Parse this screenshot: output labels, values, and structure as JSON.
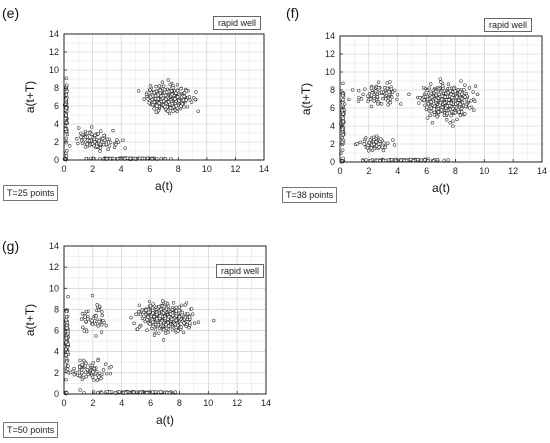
{
  "chart_data": [
    {
      "type": "scatter",
      "panel": "(e)",
      "title": "",
      "xlabel": "a(t)",
      "ylabel": "a(t+T)",
      "xlim": [
        0,
        14
      ],
      "ylim": [
        0,
        14
      ],
      "xticks": [
        0,
        2,
        4,
        6,
        8,
        10,
        12,
        14
      ],
      "yticks": [
        0,
        2,
        4,
        6,
        8,
        10,
        12,
        14
      ],
      "grid": true,
      "legend": "rapid well",
      "legend_position": "top-right",
      "annotation": "T=25 points",
      "clusters": [
        {
          "center": [
            0.1,
            0.1
          ],
          "spread": [
            0.05,
            0.05
          ],
          "count": 40
        },
        {
          "center": [
            0.15,
            5.5
          ],
          "spread": [
            0.06,
            3.0
          ],
          "count": 90
        },
        {
          "center": [
            4.5,
            0.15
          ],
          "spread": [
            2.6,
            0.05
          ],
          "count": 110
        },
        {
          "center": [
            2.3,
            2.2
          ],
          "spread": [
            1.2,
            0.9
          ],
          "count": 110
        },
        {
          "center": [
            7.3,
            6.8
          ],
          "spread": [
            1.3,
            1.2
          ],
          "count": 420
        }
      ]
    },
    {
      "type": "scatter",
      "panel": "(f)",
      "title": "",
      "xlabel": "a(t)",
      "ylabel": "a(t+T)",
      "xlim": [
        0,
        14
      ],
      "ylim": [
        0,
        14
      ],
      "xticks": [
        0,
        2,
        4,
        6,
        8,
        10,
        12,
        14
      ],
      "yticks": [
        0,
        2,
        4,
        6,
        8,
        10,
        12,
        14
      ],
      "grid": true,
      "legend": "rapid well",
      "legend_position": "top-right",
      "annotation": "T=38 points",
      "clusters": [
        {
          "center": [
            0.15,
            0.1
          ],
          "spread": [
            0.06,
            0.05
          ],
          "count": 40
        },
        {
          "center": [
            0.2,
            5.0
          ],
          "spread": [
            0.08,
            3.2
          ],
          "count": 90
        },
        {
          "center": [
            4.5,
            0.2
          ],
          "spread": [
            2.4,
            0.08
          ],
          "count": 100
        },
        {
          "center": [
            2.3,
            2.0
          ],
          "spread": [
            1.0,
            0.8
          ],
          "count": 70
        },
        {
          "center": [
            2.8,
            7.5
          ],
          "spread": [
            1.3,
            1.0
          ],
          "count": 90
        },
        {
          "center": [
            7.3,
            6.8
          ],
          "spread": [
            1.4,
            1.4
          ],
          "count": 480
        }
      ]
    },
    {
      "type": "scatter",
      "panel": "(g)",
      "title": "",
      "xlabel": "a(t)",
      "ylabel": "a(t+T)",
      "xlim": [
        0,
        14
      ],
      "ylim": [
        0,
        14
      ],
      "xticks": [
        0,
        2,
        4,
        6,
        8,
        10,
        12,
        14
      ],
      "yticks": [
        0,
        2,
        4,
        6,
        8,
        10,
        12,
        14
      ],
      "grid": true,
      "legend": "rapid well",
      "legend_position": "top-right",
      "annotation": "T=50 points",
      "clusters": [
        {
          "center": [
            0.15,
            0.1
          ],
          "spread": [
            0.06,
            0.05
          ],
          "count": 40
        },
        {
          "center": [
            0.2,
            5.0
          ],
          "spread": [
            0.08,
            3.0
          ],
          "count": 90
        },
        {
          "center": [
            5.0,
            0.15
          ],
          "spread": [
            2.5,
            0.06
          ],
          "count": 110
        },
        {
          "center": [
            1.8,
            2.2
          ],
          "spread": [
            1.2,
            1.0
          ],
          "count": 80
        },
        {
          "center": [
            2.0,
            7.0
          ],
          "spread": [
            1.0,
            1.3
          ],
          "count": 50
        },
        {
          "center": [
            7.0,
            7.2
          ],
          "spread": [
            1.5,
            1.1
          ],
          "count": 420
        }
      ]
    }
  ]
}
